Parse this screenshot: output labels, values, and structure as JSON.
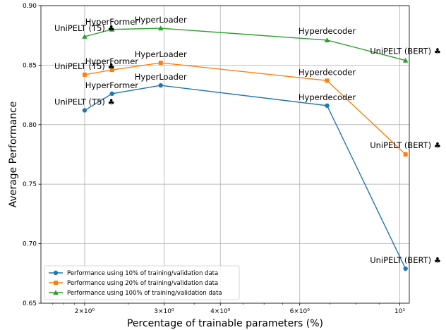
{
  "chart_data": {
    "type": "line",
    "xlabel": "Percentage of trainable parameters (%)",
    "ylabel": "Average Performance",
    "xscale": "log",
    "xlim": [
      1.6,
      10.5
    ],
    "ylim": [
      0.65,
      0.9
    ],
    "grid": "horizontal and vertical gridlines at major ticks",
    "legend_position": "lower-left",
    "x_ticks": [
      {
        "value": 2,
        "label": "2×10⁰"
      },
      {
        "value": 3,
        "label": "3×10⁰"
      },
      {
        "value": 4,
        "label": "4×10⁰"
      },
      {
        "value": 6,
        "label": "6×10⁰"
      },
      {
        "value": 10,
        "label": "10¹"
      }
    ],
    "y_ticks": [
      {
        "value": 0.65,
        "label": "0.65"
      },
      {
        "value": 0.7,
        "label": "0.70"
      },
      {
        "value": 0.75,
        "label": "0.75"
      },
      {
        "value": 0.8,
        "label": "0.80"
      },
      {
        "value": 0.85,
        "label": "0.85"
      },
      {
        "value": 0.9,
        "label": "0.90"
      }
    ],
    "series": [
      {
        "name": "Performance using 10% of training/validation data",
        "color": "#1f77b4",
        "marker": "circle",
        "points": [
          {
            "x": 2.0,
            "y": 0.812
          },
          {
            "x": 2.3,
            "y": 0.826
          },
          {
            "x": 2.95,
            "y": 0.833
          },
          {
            "x": 6.9,
            "y": 0.816
          },
          {
            "x": 10.3,
            "y": 0.679
          }
        ]
      },
      {
        "name": "Performance using 20% of training/validation data",
        "color": "#ff7f0e",
        "marker": "square",
        "points": [
          {
            "x": 2.0,
            "y": 0.842
          },
          {
            "x": 2.3,
            "y": 0.846
          },
          {
            "x": 2.95,
            "y": 0.852
          },
          {
            "x": 6.9,
            "y": 0.837
          },
          {
            "x": 10.3,
            "y": 0.775
          }
        ]
      },
      {
        "name": "Performance using 100% of training/validation data",
        "color": "#2ca02c",
        "marker": "triangle",
        "points": [
          {
            "x": 2.0,
            "y": 0.874
          },
          {
            "x": 2.3,
            "y": 0.88
          },
          {
            "x": 2.95,
            "y": 0.881
          },
          {
            "x": 6.9,
            "y": 0.871
          },
          {
            "x": 10.3,
            "y": 0.854
          }
        ]
      }
    ],
    "annotations": [
      {
        "text": "UniPELT (T5) ♣",
        "x": 2.0,
        "y": 0.812,
        "anchor": "middle",
        "dy": -8
      },
      {
        "text": "HyperFormer",
        "x": 2.3,
        "y": 0.826,
        "anchor": "start",
        "dx": -38,
        "dy": -8
      },
      {
        "text": "HyperLoader",
        "x": 2.95,
        "y": 0.833,
        "anchor": "middle",
        "dy": -8
      },
      {
        "text": "Hyperdecoder",
        "x": 6.9,
        "y": 0.816,
        "anchor": "middle",
        "dy": -8
      },
      {
        "text": "UniPELT (BERT) ♣",
        "x": 10.3,
        "y": 0.679,
        "anchor": "middle",
        "dy": -8
      },
      {
        "text": "UniPELT (T5) ♣",
        "x": 2.0,
        "y": 0.842,
        "anchor": "middle",
        "dy": -8
      },
      {
        "text": "HyperFormer",
        "x": 2.3,
        "y": 0.846,
        "anchor": "start",
        "dx": -38,
        "dy": -8
      },
      {
        "text": "HyperLoader",
        "x": 2.95,
        "y": 0.852,
        "anchor": "middle",
        "dy": -8
      },
      {
        "text": "Hyperdecoder",
        "x": 6.9,
        "y": 0.837,
        "anchor": "middle",
        "dy": -8
      },
      {
        "text": "UniPELT (BERT) ♣",
        "x": 10.3,
        "y": 0.775,
        "anchor": "middle",
        "dy": -9
      },
      {
        "text": "UniPELT (T5) ♣",
        "x": 2.0,
        "y": 0.874,
        "anchor": "middle",
        "dy": -8
      },
      {
        "text": "HyperFormer",
        "x": 2.3,
        "y": 0.88,
        "anchor": "start",
        "dx": -38,
        "dy": -7
      },
      {
        "text": "HyperLoader",
        "x": 2.95,
        "y": 0.881,
        "anchor": "middle",
        "dy": -8
      },
      {
        "text": "Hyperdecoder",
        "x": 6.9,
        "y": 0.871,
        "anchor": "middle",
        "dy": -9
      },
      {
        "text": "UniPELT (BERT) ♣",
        "x": 10.3,
        "y": 0.854,
        "anchor": "middle",
        "dy": -9
      }
    ]
  }
}
